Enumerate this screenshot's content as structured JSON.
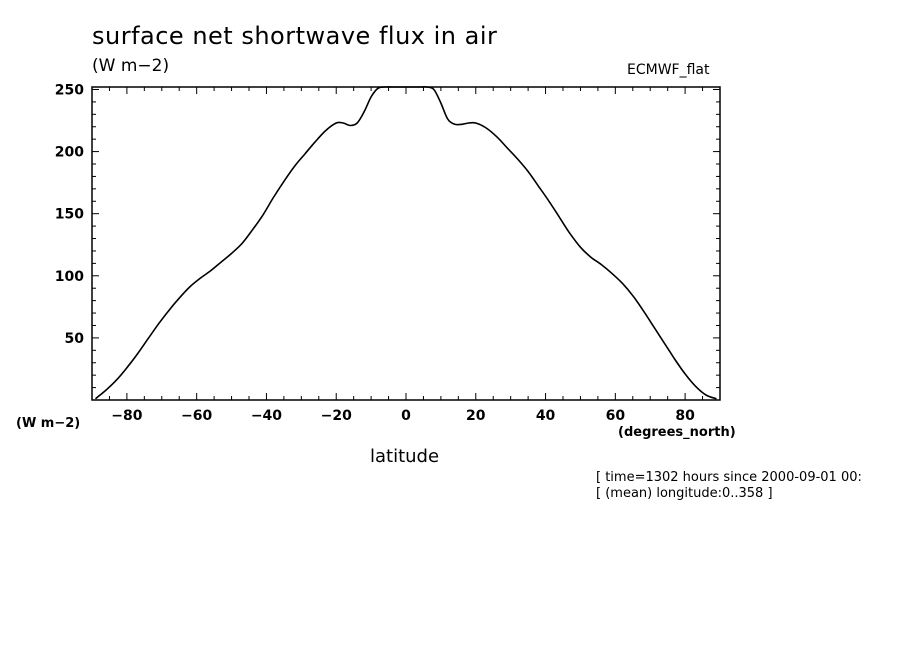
{
  "header": {
    "title": "surface net shortwave flux in air",
    "units": "(W m−2)",
    "dataset": "ECMWF_flat"
  },
  "axes": {
    "y_units_label": "(W m−2)",
    "x_units_label": "(degrees_north)",
    "x_label": "latitude"
  },
  "notes": {
    "line1": "[ time=1302 hours since 2000-09-01 00:",
    "line2": "[ (mean) longitude:0..358 ]"
  },
  "chart_data": {
    "type": "line",
    "xlabel": "latitude",
    "ylabel": "(W m−2)",
    "xlim": [
      -90,
      90
    ],
    "ylim": [
      0,
      252
    ],
    "xticks": [
      -80,
      -60,
      -40,
      -20,
      0,
      20,
      40,
      60,
      80
    ],
    "yticks": [
      50,
      100,
      150,
      200,
      250
    ],
    "grid": false,
    "line_color": "#000000",
    "series": [
      {
        "x": [
          -89,
          -86,
          -83,
          -80,
          -77,
          -74,
          -71,
          -68,
          -65,
          -62,
          -59,
          -56,
          -53,
          -50,
          -47,
          -44,
          -41,
          -38,
          -35,
          -32,
          -29,
          -26,
          -23,
          -20,
          -18,
          -16,
          -14,
          -12,
          -10,
          -8,
          -6,
          -4,
          -2,
          0,
          2,
          4,
          6,
          8,
          10,
          12,
          14,
          16,
          18,
          20,
          23,
          26,
          29,
          32,
          35,
          38,
          41,
          44,
          47,
          50,
          53,
          56,
          59,
          62,
          65,
          68,
          71,
          74,
          77,
          80,
          83,
          86,
          89
        ],
        "values": [
          1,
          8,
          16,
          26,
          37,
          49,
          61,
          72,
          82,
          91,
          98,
          104,
          111,
          118,
          126,
          137,
          149,
          163,
          176,
          188,
          198,
          208,
          217,
          223,
          223,
          221,
          223,
          232,
          244,
          251,
          252,
          252,
          252,
          252,
          252,
          252,
          252,
          250,
          239,
          226,
          222,
          222,
          223,
          223,
          219,
          212,
          203,
          194,
          184,
          172,
          160,
          147,
          134,
          123,
          115,
          109,
          102,
          94,
          84,
          72,
          59,
          46,
          33,
          21,
          11,
          4,
          1
        ]
      }
    ]
  }
}
